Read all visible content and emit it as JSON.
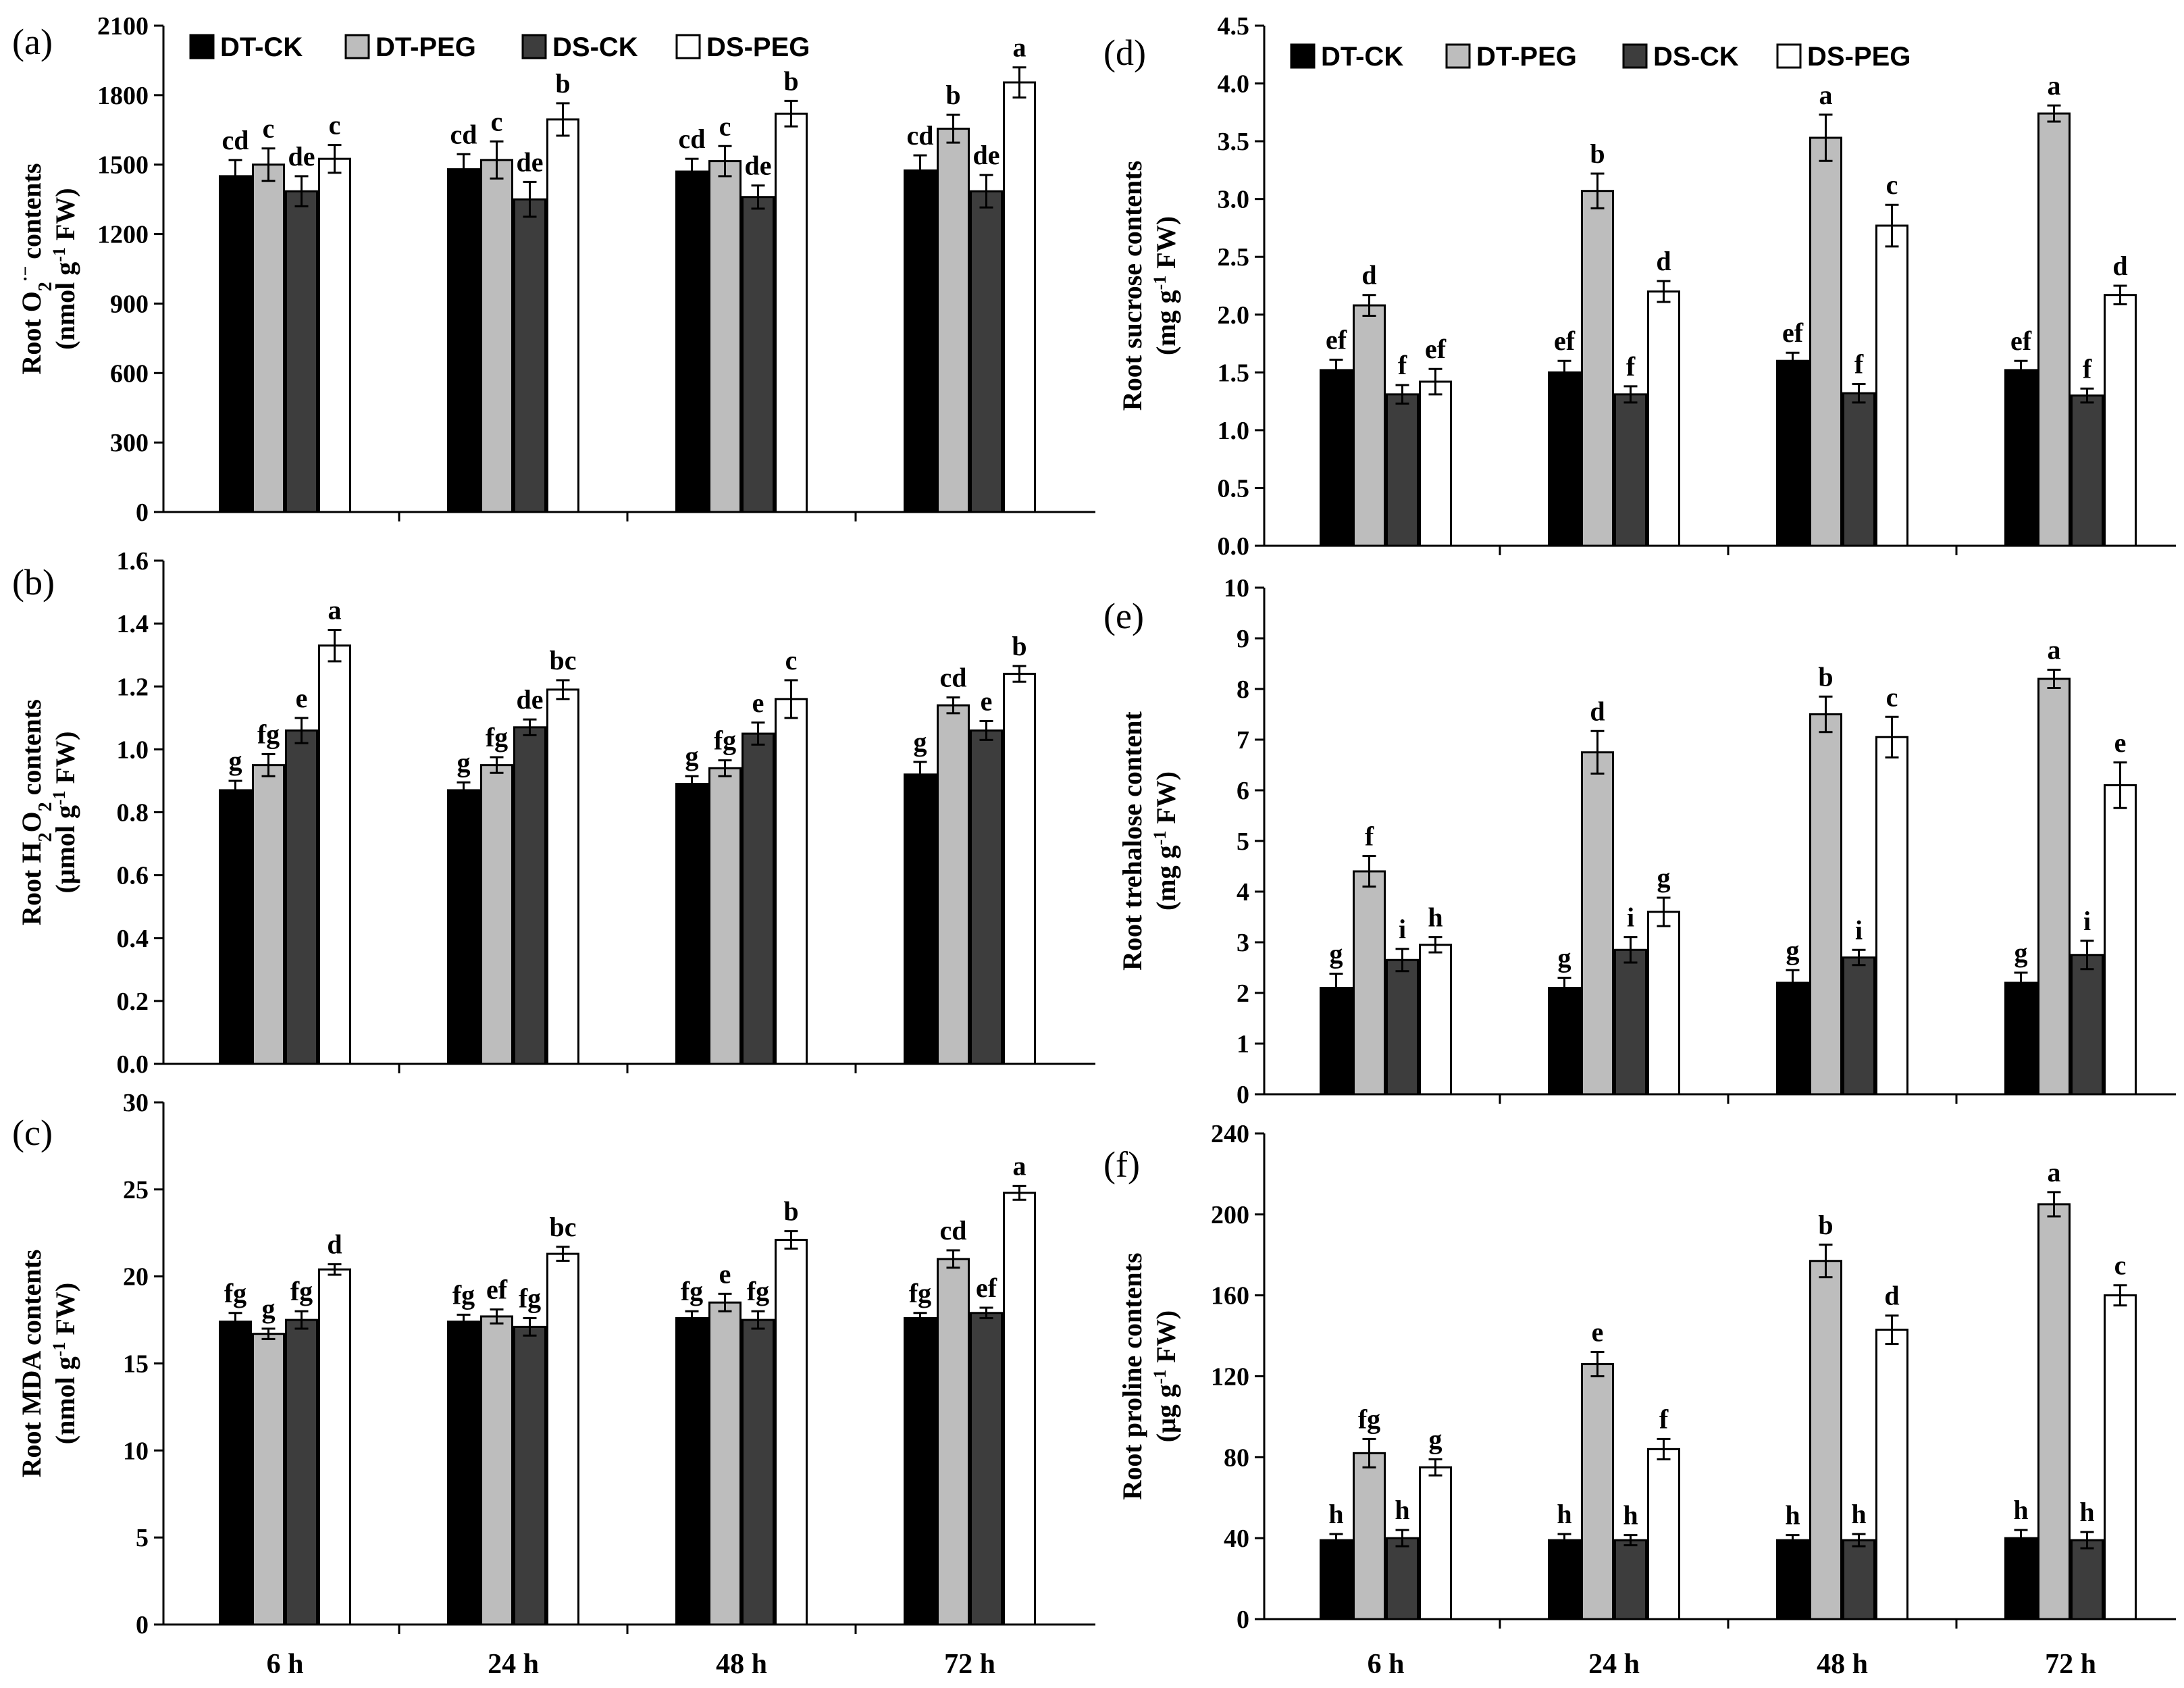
{
  "legend": [
    "DT-CK",
    "DT-PEG",
    "DS-CK",
    "DS-PEG"
  ],
  "colors": {
    "DT-CK": "#000000",
    "DT-PEG": "#bdbdbd",
    "DS-CK": "#3d3d3d",
    "DS-PEG": "#ffffff"
  },
  "chart_data": [
    {
      "panel": "(a)",
      "type": "bar",
      "ylabel_line1": "Root  O",
      "ylabel_sub": "2",
      "ylabel_sup": "·−",
      "ylabel_line1_end": "  contents",
      "ylabel_line2": "(nmol g",
      "ylabel_line2_sup": "-1",
      "ylabel_line2_end": " FW)",
      "ylim": [
        0,
        2100
      ],
      "yticks": [
        "0",
        "300",
        "600",
        "900",
        "1200",
        "1500",
        "1800",
        "2100"
      ],
      "categories": [
        "6 h",
        "24 h",
        "48 h",
        "72 h"
      ],
      "series": [
        {
          "name": "DT-CK",
          "values": [
            1450,
            1480,
            1470,
            1475
          ],
          "errors": [
            70,
            65,
            55,
            65
          ],
          "letters": [
            "cd",
            "cd",
            "cd",
            "cd"
          ]
        },
        {
          "name": "DT-PEG",
          "values": [
            1500,
            1520,
            1515,
            1655
          ],
          "errors": [
            70,
            80,
            65,
            60
          ],
          "letters": [
            "c",
            "c",
            "c",
            "b"
          ]
        },
        {
          "name": "DS-CK",
          "values": [
            1385,
            1350,
            1360,
            1385
          ],
          "errors": [
            65,
            75,
            50,
            70
          ],
          "letters": [
            "de",
            "de",
            "de",
            "de"
          ]
        },
        {
          "name": "DS-PEG",
          "values": [
            1525,
            1695,
            1720,
            1855
          ],
          "errors": [
            60,
            70,
            55,
            65
          ],
          "letters": [
            "c",
            "b",
            "b",
            "a"
          ]
        }
      ]
    },
    {
      "panel": "(b)",
      "type": "bar",
      "ylabel_line1": "Root H",
      "ylabel_sub": "2",
      "ylabel_mid": "O",
      "ylabel_sub2": "2",
      "ylabel_line1_end": " contents",
      "ylabel_line2": "(μmol g",
      "ylabel_line2_sup": "-1",
      "ylabel_line2_end": " FW)",
      "ylim": [
        0,
        1.6
      ],
      "yticks": [
        "0.0",
        "0.2",
        "0.4",
        "0.6",
        "0.8",
        "1.0",
        "1.2",
        "1.4",
        "1.6"
      ],
      "categories": [
        "6 h",
        "24 h",
        "48 h",
        "72 h"
      ],
      "series": [
        {
          "name": "DT-CK",
          "values": [
            0.87,
            0.87,
            0.89,
            0.92
          ],
          "errors": [
            0.03,
            0.025,
            0.025,
            0.04
          ],
          "letters": [
            "g",
            "g",
            "g",
            "g"
          ]
        },
        {
          "name": "DT-PEG",
          "values": [
            0.95,
            0.95,
            0.94,
            1.14
          ],
          "errors": [
            0.035,
            0.025,
            0.025,
            0.025
          ],
          "letters": [
            "fg",
            "fg",
            "fg",
            "cd"
          ]
        },
        {
          "name": "DS-CK",
          "values": [
            1.06,
            1.07,
            1.05,
            1.06
          ],
          "errors": [
            0.04,
            0.025,
            0.035,
            0.03
          ],
          "letters": [
            "e",
            "de",
            "e",
            "e"
          ]
        },
        {
          "name": "DS-PEG",
          "values": [
            1.33,
            1.19,
            1.16,
            1.24
          ],
          "errors": [
            0.05,
            0.03,
            0.06,
            0.025
          ],
          "letters": [
            "a",
            "bc",
            "c",
            "b"
          ]
        }
      ]
    },
    {
      "panel": "(c)",
      "type": "bar",
      "ylabel_line1": "Root MDA contents",
      "ylabel_line2": "(nmol g",
      "ylabel_line2_sup": "-1",
      "ylabel_line2_end": " FW)",
      "ylim": [
        0,
        30
      ],
      "yticks": [
        "0",
        "5",
        "10",
        "15",
        "20",
        "25",
        "30"
      ],
      "categories": [
        "6 h",
        "24 h",
        "48 h",
        "72 h"
      ],
      "series": [
        {
          "name": "DT-CK",
          "values": [
            17.4,
            17.4,
            17.6,
            17.6
          ],
          "errors": [
            0.5,
            0.4,
            0.4,
            0.3
          ],
          "letters": [
            "fg",
            "fg",
            "fg",
            "fg"
          ]
        },
        {
          "name": "DT-PEG",
          "values": [
            16.7,
            17.7,
            18.5,
            21.0
          ],
          "errors": [
            0.3,
            0.4,
            0.5,
            0.5
          ],
          "letters": [
            "g",
            "ef",
            "e",
            "cd"
          ]
        },
        {
          "name": "DS-CK",
          "values": [
            17.5,
            17.1,
            17.5,
            17.9
          ],
          "errors": [
            0.5,
            0.5,
            0.5,
            0.3
          ],
          "letters": [
            "fg",
            "fg",
            "fg",
            "ef"
          ]
        },
        {
          "name": "DS-PEG",
          "values": [
            20.4,
            21.3,
            22.1,
            24.8
          ],
          "errors": [
            0.3,
            0.4,
            0.5,
            0.4
          ],
          "letters": [
            "d",
            "bc",
            "b",
            "a"
          ]
        }
      ]
    },
    {
      "panel": "(d)",
      "type": "bar",
      "ylabel_line1": "Root sucrose contents",
      "ylabel_line2": "(mg g",
      "ylabel_line2_sup": "-1",
      "ylabel_line2_end": " FW)",
      "ylim": [
        0,
        4.5
      ],
      "yticks": [
        "0.0",
        "0.5",
        "1.0",
        "1.5",
        "2.0",
        "2.5",
        "3.0",
        "3.5",
        "4.0",
        "4.5"
      ],
      "categories": [
        "6 h",
        "24 h",
        "48 h",
        "72 h"
      ],
      "series": [
        {
          "name": "DT-CK",
          "values": [
            1.52,
            1.5,
            1.6,
            1.52
          ],
          "errors": [
            0.09,
            0.1,
            0.07,
            0.08
          ],
          "letters": [
            "ef",
            "ef",
            "ef",
            "ef"
          ]
        },
        {
          "name": "DT-PEG",
          "values": [
            2.08,
            3.07,
            3.53,
            3.74
          ],
          "errors": [
            0.09,
            0.15,
            0.2,
            0.07
          ],
          "letters": [
            "d",
            "b",
            "a",
            "a"
          ]
        },
        {
          "name": "DS-CK",
          "values": [
            1.31,
            1.31,
            1.32,
            1.3
          ],
          "errors": [
            0.08,
            0.07,
            0.08,
            0.06
          ],
          "letters": [
            "f",
            "f",
            "f",
            "f"
          ]
        },
        {
          "name": "DS-PEG",
          "values": [
            1.42,
            2.2,
            2.77,
            2.17
          ],
          "errors": [
            0.11,
            0.09,
            0.18,
            0.08
          ],
          "letters": [
            "ef",
            "d",
            "c",
            "d"
          ]
        }
      ]
    },
    {
      "panel": "(e)",
      "type": "bar",
      "ylabel_line1": "Root trehalose content",
      "ylabel_line2": "(mg g",
      "ylabel_line2_sup": "-1",
      "ylabel_line2_end": " FW)",
      "ylim": [
        0,
        10
      ],
      "yticks": [
        "0",
        "1",
        "2",
        "3",
        "4",
        "5",
        "6",
        "7",
        "8",
        "9",
        "10"
      ],
      "categories": [
        "6 h",
        "24 h",
        "48 h",
        "72 h"
      ],
      "series": [
        {
          "name": "DT-CK",
          "values": [
            2.1,
            2.1,
            2.2,
            2.2
          ],
          "errors": [
            0.28,
            0.2,
            0.25,
            0.2
          ],
          "letters": [
            "g",
            "g",
            "g",
            "g"
          ]
        },
        {
          "name": "DT-PEG",
          "values": [
            4.4,
            6.75,
            7.5,
            8.2
          ],
          "errors": [
            0.3,
            0.42,
            0.35,
            0.18
          ],
          "letters": [
            "f",
            "d",
            "b",
            "a"
          ]
        },
        {
          "name": "DS-CK",
          "values": [
            2.65,
            2.85,
            2.7,
            2.75
          ],
          "errors": [
            0.22,
            0.25,
            0.15,
            0.28
          ],
          "letters": [
            "i",
            "i",
            "i",
            "i"
          ]
        },
        {
          "name": "DS-PEG",
          "values": [
            2.95,
            3.6,
            7.05,
            6.1
          ],
          "errors": [
            0.15,
            0.28,
            0.4,
            0.45
          ],
          "letters": [
            "h",
            "g",
            "c",
            "e"
          ]
        }
      ]
    },
    {
      "panel": "(f)",
      "type": "bar",
      "ylabel_line1": "Root proline contents",
      "ylabel_line2": "(μg g",
      "ylabel_line2_sup": "-1",
      "ylabel_line2_end": " FW)",
      "ylim": [
        0,
        240
      ],
      "yticks": [
        "0",
        "40",
        "80",
        "120",
        "160",
        "200",
        "240"
      ],
      "categories": [
        "6 h",
        "24 h",
        "48 h",
        "72 h"
      ],
      "series": [
        {
          "name": "DT-CK",
          "values": [
            39,
            39,
            39,
            40
          ],
          "errors": [
            3,
            3,
            2.5,
            4
          ],
          "letters": [
            "h",
            "h",
            "h",
            "h"
          ]
        },
        {
          "name": "DT-PEG",
          "values": [
            82,
            126,
            177,
            205
          ],
          "errors": [
            7,
            6,
            8,
            6
          ],
          "letters": [
            "fg",
            "e",
            "b",
            "a"
          ]
        },
        {
          "name": "DS-CK",
          "values": [
            40,
            39,
            39,
            39
          ],
          "errors": [
            4,
            2.5,
            3,
            4
          ],
          "letters": [
            "h",
            "h",
            "h",
            "h"
          ]
        },
        {
          "name": "DS-PEG",
          "values": [
            75,
            84,
            143,
            160
          ],
          "errors": [
            4,
            5,
            7,
            5
          ],
          "letters": [
            "g",
            "f",
            "d",
            "c"
          ]
        }
      ]
    }
  ]
}
